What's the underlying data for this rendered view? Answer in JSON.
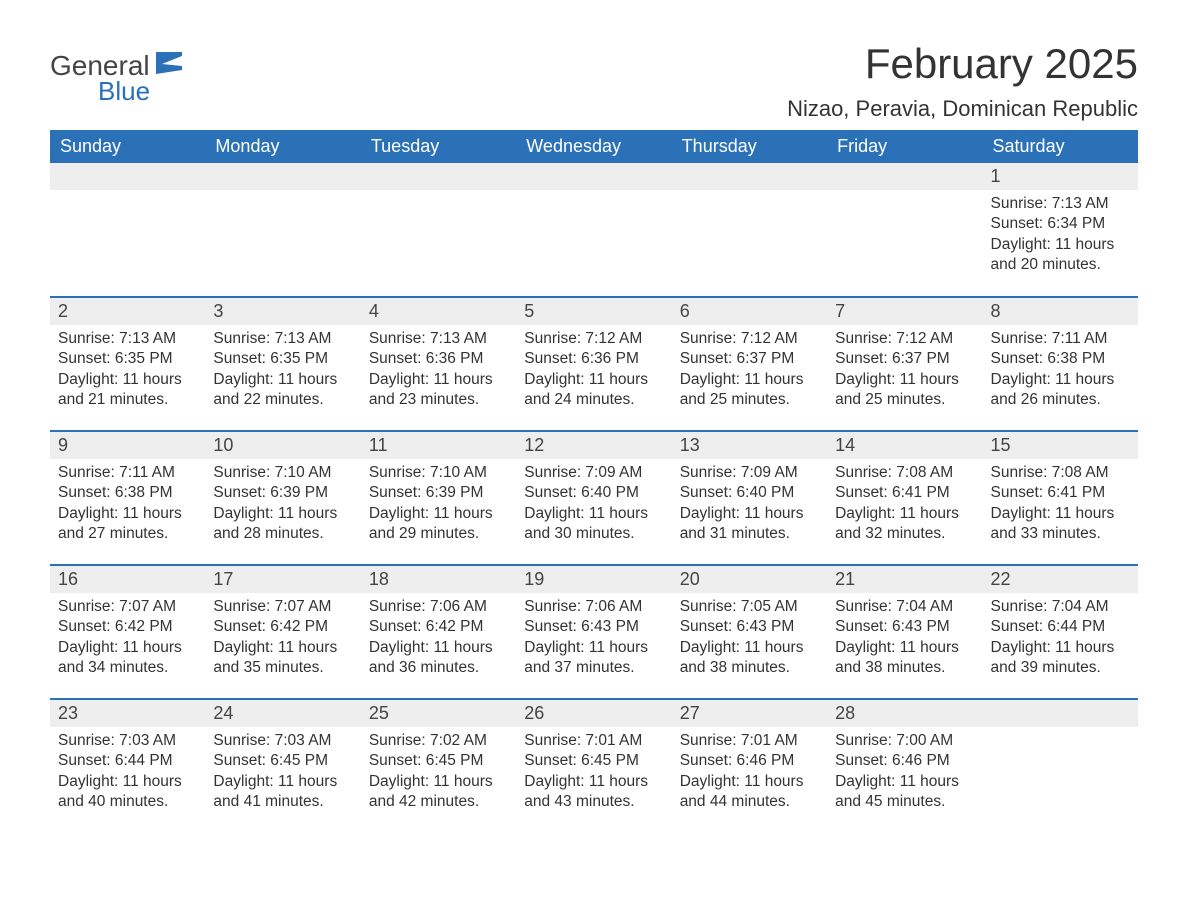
{
  "logo": {
    "text1": "General",
    "text2": "Blue",
    "flag_color": "#2a71b8"
  },
  "title": "February 2025",
  "location": "Nizao, Peravia, Dominican Republic",
  "header_bg": "#2a71b8",
  "header_fg": "#ffffff",
  "daynum_bg": "#eeeeee",
  "row_border": "#2a71b8",
  "weekdays": [
    "Sunday",
    "Monday",
    "Tuesday",
    "Wednesday",
    "Thursday",
    "Friday",
    "Saturday"
  ],
  "weeks": [
    [
      null,
      null,
      null,
      null,
      null,
      null,
      {
        "n": "1",
        "sunrise": "7:13 AM",
        "sunset": "6:34 PM",
        "dl": "11 hours and 20 minutes."
      }
    ],
    [
      {
        "n": "2",
        "sunrise": "7:13 AM",
        "sunset": "6:35 PM",
        "dl": "11 hours and 21 minutes."
      },
      {
        "n": "3",
        "sunrise": "7:13 AM",
        "sunset": "6:35 PM",
        "dl": "11 hours and 22 minutes."
      },
      {
        "n": "4",
        "sunrise": "7:13 AM",
        "sunset": "6:36 PM",
        "dl": "11 hours and 23 minutes."
      },
      {
        "n": "5",
        "sunrise": "7:12 AM",
        "sunset": "6:36 PM",
        "dl": "11 hours and 24 minutes."
      },
      {
        "n": "6",
        "sunrise": "7:12 AM",
        "sunset": "6:37 PM",
        "dl": "11 hours and 25 minutes."
      },
      {
        "n": "7",
        "sunrise": "7:12 AM",
        "sunset": "6:37 PM",
        "dl": "11 hours and 25 minutes."
      },
      {
        "n": "8",
        "sunrise": "7:11 AM",
        "sunset": "6:38 PM",
        "dl": "11 hours and 26 minutes."
      }
    ],
    [
      {
        "n": "9",
        "sunrise": "7:11 AM",
        "sunset": "6:38 PM",
        "dl": "11 hours and 27 minutes."
      },
      {
        "n": "10",
        "sunrise": "7:10 AM",
        "sunset": "6:39 PM",
        "dl": "11 hours and 28 minutes."
      },
      {
        "n": "11",
        "sunrise": "7:10 AM",
        "sunset": "6:39 PM",
        "dl": "11 hours and 29 minutes."
      },
      {
        "n": "12",
        "sunrise": "7:09 AM",
        "sunset": "6:40 PM",
        "dl": "11 hours and 30 minutes."
      },
      {
        "n": "13",
        "sunrise": "7:09 AM",
        "sunset": "6:40 PM",
        "dl": "11 hours and 31 minutes."
      },
      {
        "n": "14",
        "sunrise": "7:08 AM",
        "sunset": "6:41 PM",
        "dl": "11 hours and 32 minutes."
      },
      {
        "n": "15",
        "sunrise": "7:08 AM",
        "sunset": "6:41 PM",
        "dl": "11 hours and 33 minutes."
      }
    ],
    [
      {
        "n": "16",
        "sunrise": "7:07 AM",
        "sunset": "6:42 PM",
        "dl": "11 hours and 34 minutes."
      },
      {
        "n": "17",
        "sunrise": "7:07 AM",
        "sunset": "6:42 PM",
        "dl": "11 hours and 35 minutes."
      },
      {
        "n": "18",
        "sunrise": "7:06 AM",
        "sunset": "6:42 PM",
        "dl": "11 hours and 36 minutes."
      },
      {
        "n": "19",
        "sunrise": "7:06 AM",
        "sunset": "6:43 PM",
        "dl": "11 hours and 37 minutes."
      },
      {
        "n": "20",
        "sunrise": "7:05 AM",
        "sunset": "6:43 PM",
        "dl": "11 hours and 38 minutes."
      },
      {
        "n": "21",
        "sunrise": "7:04 AM",
        "sunset": "6:43 PM",
        "dl": "11 hours and 38 minutes."
      },
      {
        "n": "22",
        "sunrise": "7:04 AM",
        "sunset": "6:44 PM",
        "dl": "11 hours and 39 minutes."
      }
    ],
    [
      {
        "n": "23",
        "sunrise": "7:03 AM",
        "sunset": "6:44 PM",
        "dl": "11 hours and 40 minutes."
      },
      {
        "n": "24",
        "sunrise": "7:03 AM",
        "sunset": "6:45 PM",
        "dl": "11 hours and 41 minutes."
      },
      {
        "n": "25",
        "sunrise": "7:02 AM",
        "sunset": "6:45 PM",
        "dl": "11 hours and 42 minutes."
      },
      {
        "n": "26",
        "sunrise": "7:01 AM",
        "sunset": "6:45 PM",
        "dl": "11 hours and 43 minutes."
      },
      {
        "n": "27",
        "sunrise": "7:01 AM",
        "sunset": "6:46 PM",
        "dl": "11 hours and 44 minutes."
      },
      {
        "n": "28",
        "sunrise": "7:00 AM",
        "sunset": "6:46 PM",
        "dl": "11 hours and 45 minutes."
      },
      null
    ]
  ],
  "labels": {
    "sunrise": "Sunrise:",
    "sunset": "Sunset:",
    "daylight": "Daylight:"
  }
}
